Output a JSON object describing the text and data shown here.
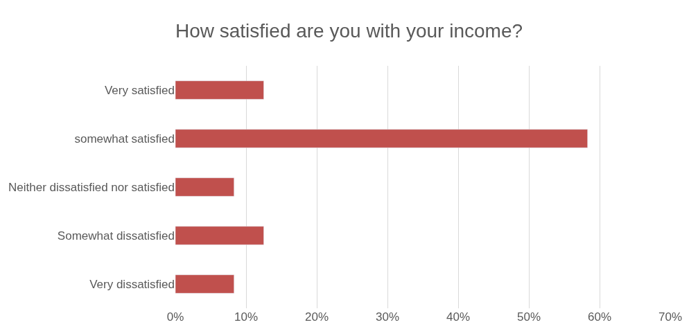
{
  "chart_data": {
    "type": "bar",
    "orientation": "horizontal",
    "title": "How satisfied are you with your income?",
    "categories": [
      "Very satisfied",
      "somewhat satisfied",
      "Neither dissatisfied nor satisfied",
      "Somewhat dissatisfied",
      "Very dissatisfied"
    ],
    "values": [
      12.5,
      58.3,
      8.3,
      12.5,
      8.3
    ],
    "color": "#c0504d",
    "xlim": [
      0,
      70
    ],
    "xticks": [
      {
        "value": 0,
        "label": "0%"
      },
      {
        "value": 10,
        "label": "10%"
      },
      {
        "value": 20,
        "label": "20%"
      },
      {
        "value": 30,
        "label": "30%"
      },
      {
        "value": 40,
        "label": "40%"
      },
      {
        "value": 50,
        "label": "50%"
      },
      {
        "value": 60,
        "label": "60%"
      },
      {
        "value": 70,
        "label": "70%"
      }
    ],
    "grid": "x"
  }
}
